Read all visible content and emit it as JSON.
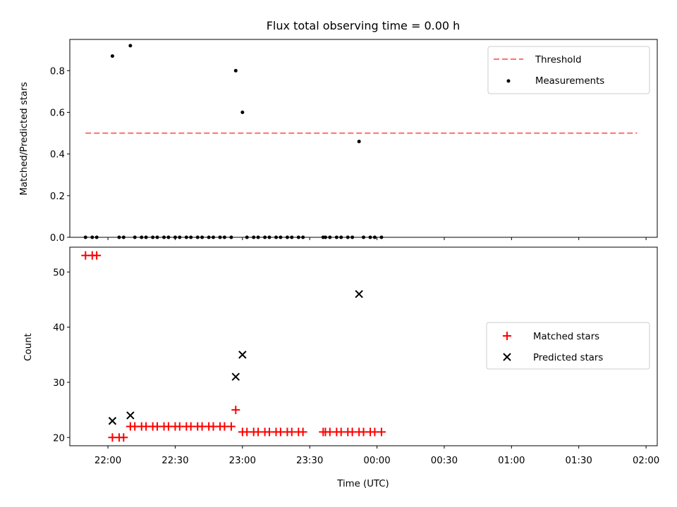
{
  "chart_data": [
    {
      "type": "scatter",
      "title": "Flux total observing time = 0.00 h",
      "xlabel": "",
      "ylabel": "Matched/Predicted stars",
      "xlim": [
        "21:43",
        "02:05"
      ],
      "ylim": [
        0.0,
        0.95
      ],
      "yticks": [
        0.0,
        0.2,
        0.4,
        0.6,
        0.8
      ],
      "ytick_labels": [
        "0.0",
        "0.2",
        "0.4",
        "0.6",
        "0.8"
      ],
      "legend_position": "top-right",
      "series": [
        {
          "name": "Threshold",
          "kind": "line",
          "style": "dashed",
          "color": "#ff7070",
          "x": [
            "21:50",
            "01:56"
          ],
          "y": [
            0.5,
            0.5
          ]
        },
        {
          "name": "Measurements",
          "kind": "scatter",
          "color": "#000000",
          "points": [
            [
              "21:50",
              0.0
            ],
            [
              "21:53",
              0.0
            ],
            [
              "21:55",
              0.0
            ],
            [
              "22:02",
              0.87
            ],
            [
              "22:05",
              0.0
            ],
            [
              "22:07",
              0.0
            ],
            [
              "22:10",
              0.92
            ],
            [
              "22:12",
              0.0
            ],
            [
              "22:15",
              0.0
            ],
            [
              "22:17",
              0.0
            ],
            [
              "22:20",
              0.0
            ],
            [
              "22:22",
              0.0
            ],
            [
              "22:25",
              0.0
            ],
            [
              "22:27",
              0.0
            ],
            [
              "22:30",
              0.0
            ],
            [
              "22:32",
              0.0
            ],
            [
              "22:35",
              0.0
            ],
            [
              "22:37",
              0.0
            ],
            [
              "22:40",
              0.0
            ],
            [
              "22:42",
              0.0
            ],
            [
              "22:45",
              0.0
            ],
            [
              "22:47",
              0.0
            ],
            [
              "22:50",
              0.0
            ],
            [
              "22:52",
              0.0
            ],
            [
              "22:55",
              0.0
            ],
            [
              "22:57",
              0.8
            ],
            [
              "23:00",
              0.6
            ],
            [
              "23:02",
              0.0
            ],
            [
              "23:05",
              0.0
            ],
            [
              "23:07",
              0.0
            ],
            [
              "23:10",
              0.0
            ],
            [
              "23:12",
              0.0
            ],
            [
              "23:15",
              0.0
            ],
            [
              "23:17",
              0.0
            ],
            [
              "23:20",
              0.0
            ],
            [
              "23:22",
              0.0
            ],
            [
              "23:25",
              0.0
            ],
            [
              "23:27",
              0.0
            ],
            [
              "23:36",
              0.0
            ],
            [
              "23:37",
              0.0
            ],
            [
              "23:39",
              0.0
            ],
            [
              "23:42",
              0.0
            ],
            [
              "23:44",
              0.0
            ],
            [
              "23:47",
              0.0
            ],
            [
              "23:49",
              0.0
            ],
            [
              "23:52",
              0.46
            ],
            [
              "23:54",
              0.0
            ],
            [
              "23:57",
              0.0
            ],
            [
              "23:59",
              0.0
            ],
            [
              "00:02",
              0.0
            ]
          ]
        }
      ]
    },
    {
      "type": "scatter",
      "title": "",
      "xlabel": "Time (UTC)",
      "ylabel": "Count",
      "xlim": [
        "21:43",
        "02:05"
      ],
      "ylim": [
        18.5,
        54.5
      ],
      "yticks": [
        20,
        30,
        40,
        50
      ],
      "ytick_labels": [
        "20",
        "30",
        "40",
        "50"
      ],
      "xticks": [
        "22:00",
        "22:30",
        "23:00",
        "23:30",
        "00:00",
        "00:30",
        "01:00",
        "01:30",
        "02:00"
      ],
      "legend_position": "center-right",
      "series": [
        {
          "name": "Matched stars",
          "marker": "plus",
          "color": "#ff0000",
          "points": [
            [
              "21:50",
              53
            ],
            [
              "21:53",
              53
            ],
            [
              "21:55",
              53
            ],
            [
              "22:02",
              20
            ],
            [
              "22:05",
              20
            ],
            [
              "22:07",
              20
            ],
            [
              "22:10",
              22
            ],
            [
              "22:12",
              22
            ],
            [
              "22:15",
              22
            ],
            [
              "22:17",
              22
            ],
            [
              "22:20",
              22
            ],
            [
              "22:22",
              22
            ],
            [
              "22:25",
              22
            ],
            [
              "22:27",
              22
            ],
            [
              "22:30",
              22
            ],
            [
              "22:32",
              22
            ],
            [
              "22:35",
              22
            ],
            [
              "22:37",
              22
            ],
            [
              "22:40",
              22
            ],
            [
              "22:42",
              22
            ],
            [
              "22:45",
              22
            ],
            [
              "22:47",
              22
            ],
            [
              "22:50",
              22
            ],
            [
              "22:52",
              22
            ],
            [
              "22:55",
              22
            ],
            [
              "22:57",
              25
            ],
            [
              "23:00",
              21
            ],
            [
              "23:02",
              21
            ],
            [
              "23:05",
              21
            ],
            [
              "23:07",
              21
            ],
            [
              "23:10",
              21
            ],
            [
              "23:12",
              21
            ],
            [
              "23:15",
              21
            ],
            [
              "23:17",
              21
            ],
            [
              "23:20",
              21
            ],
            [
              "23:22",
              21
            ],
            [
              "23:25",
              21
            ],
            [
              "23:27",
              21
            ],
            [
              "23:36",
              21
            ],
            [
              "23:37",
              21
            ],
            [
              "23:39",
              21
            ],
            [
              "23:42",
              21
            ],
            [
              "23:44",
              21
            ],
            [
              "23:47",
              21
            ],
            [
              "23:49",
              21
            ],
            [
              "23:52",
              21
            ],
            [
              "23:54",
              21
            ],
            [
              "23:57",
              21
            ],
            [
              "23:59",
              21
            ],
            [
              "00:02",
              21
            ]
          ]
        },
        {
          "name": "Predicted stars",
          "marker": "x",
          "color": "#000000",
          "points": [
            [
              "22:02",
              23
            ],
            [
              "22:10",
              24
            ],
            [
              "22:57",
              31
            ],
            [
              "23:00",
              35
            ],
            [
              "23:52",
              46
            ]
          ]
        }
      ]
    }
  ]
}
